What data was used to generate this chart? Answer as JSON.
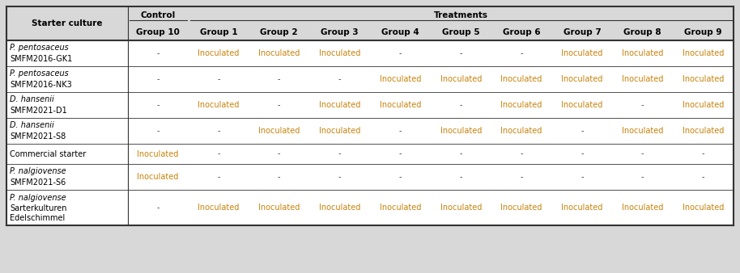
{
  "group_labels": [
    "Group 10",
    "Group 1",
    "Group 2",
    "Group 3",
    "Group 4",
    "Group 5",
    "Group 6",
    "Group 7",
    "Group 8",
    "Group 9"
  ],
  "rows": [
    {
      "label_lines": [
        "P. pentosaceus",
        "SMFM2016-GK1"
      ],
      "label_italic": [
        true,
        false
      ],
      "values": [
        "-",
        "Inoculated",
        "Inoculated",
        "Inoculated",
        "-",
        "-",
        "-",
        "Inoculated",
        "Inoculated",
        "Inoculated"
      ]
    },
    {
      "label_lines": [
        "P. pentosaceus",
        "SMFM2016-NK3"
      ],
      "label_italic": [
        true,
        false
      ],
      "values": [
        "-",
        "-",
        "-",
        "-",
        "Inoculated",
        "Inoculated",
        "Inoculated",
        "Inoculated",
        "Inoculated",
        "Inoculated"
      ]
    },
    {
      "label_lines": [
        "D. hansenii",
        "SMFM2021-D1"
      ],
      "label_italic": [
        true,
        false
      ],
      "values": [
        "-",
        "Inoculated",
        "-",
        "Inoculated",
        "Inoculated",
        "-",
        "Inoculated",
        "Inoculated",
        "-",
        "Inoculated"
      ]
    },
    {
      "label_lines": [
        "D. hansenii",
        "SMFM2021-S8"
      ],
      "label_italic": [
        true,
        false
      ],
      "values": [
        "-",
        "-",
        "Inoculated",
        "Inoculated",
        "-",
        "Inoculated",
        "Inoculated",
        "-",
        "Inoculated",
        "Inoculated"
      ]
    },
    {
      "label_lines": [
        "Commercial starter"
      ],
      "label_italic": [
        false
      ],
      "values": [
        "Inoculated",
        "-",
        "-",
        "-",
        "-",
        "-",
        "-",
        "-",
        "-",
        "-"
      ]
    },
    {
      "label_lines": [
        "P. nalgiovense",
        "SMFM2021-S6"
      ],
      "label_italic": [
        true,
        false
      ],
      "values": [
        "Inoculated",
        "-",
        "-",
        "-",
        "-",
        "-",
        "-",
        "-",
        "-",
        "-"
      ]
    },
    {
      "label_lines": [
        "P. nalgiovense",
        "Sarterkulturen",
        "Edelschimmel"
      ],
      "label_italic": [
        true,
        false,
        false
      ],
      "values": [
        "-",
        "Inoculated",
        "Inoculated",
        "Inoculated",
        "Inoculated",
        "Inoculated",
        "Inoculated",
        "Inoculated",
        "Inoculated",
        "Inoculated"
      ]
    }
  ],
  "bg_color": "#d8d8d8",
  "body_bg": "#ffffff",
  "border_color": "#333333",
  "text_color_inoculated": "#c8820a",
  "text_color_dash": "#444444",
  "text_color_header": "#000000",
  "text_color_label": "#000000",
  "font_size_header1": 7.5,
  "font_size_header2": 7.5,
  "font_size_body": 7.0
}
